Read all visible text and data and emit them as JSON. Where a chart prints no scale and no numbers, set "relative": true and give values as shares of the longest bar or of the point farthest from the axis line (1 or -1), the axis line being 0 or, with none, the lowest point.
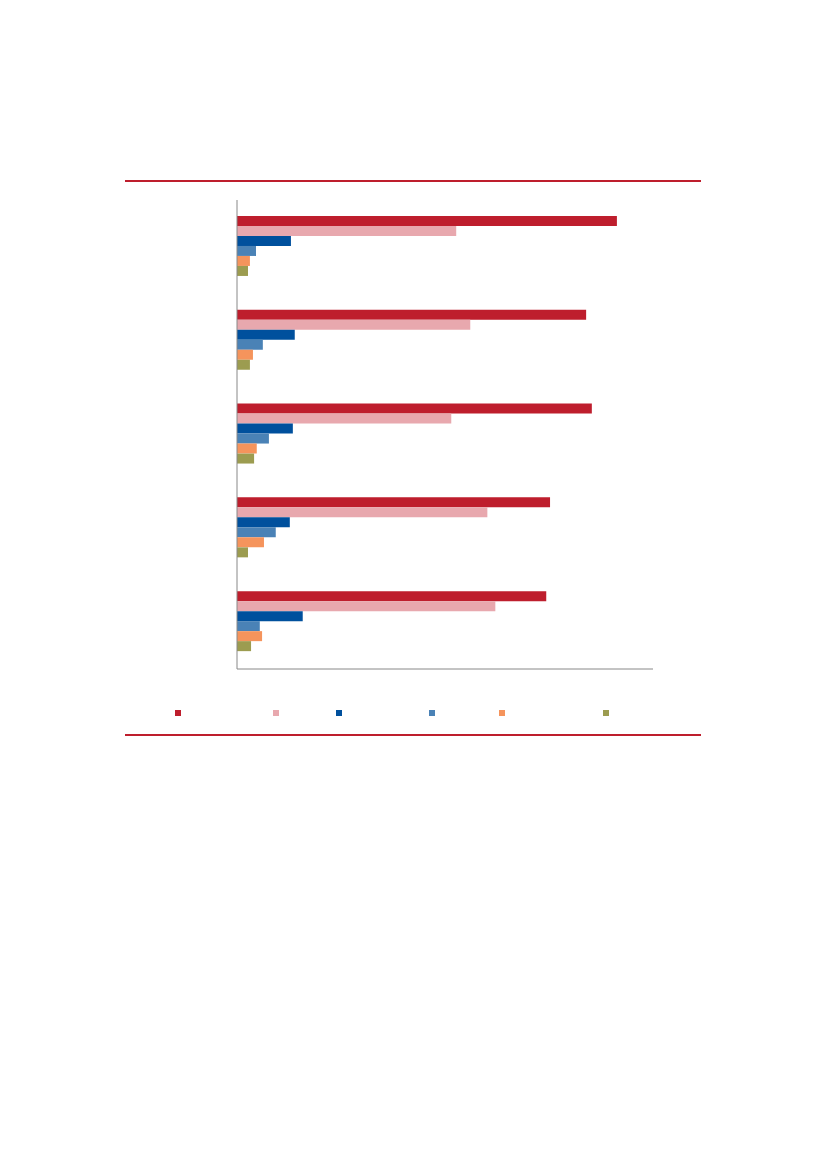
{
  "chart_data": {
    "type": "bar",
    "orientation": "horizontal",
    "relative": true,
    "categories": [
      null,
      null,
      null,
      null,
      null
    ],
    "series": [
      {
        "color": "#be1e2d",
        "values": [
          1,
          0.919,
          0.934,
          0.824,
          0.814
        ]
      },
      {
        "color": "#e8a8ae",
        "values": [
          0.577,
          0.614,
          0.564,
          0.659,
          0.68
        ]
      },
      {
        "color": "#00509d",
        "values": [
          0.142,
          0.152,
          0.147,
          0.139,
          0.173
        ]
      },
      {
        "color": "#4a82b6",
        "values": [
          0.05,
          0.068,
          0.084,
          0.102,
          0.06
        ]
      },
      {
        "color": "#f5945c",
        "values": [
          0.034,
          0.042,
          0.052,
          0.071,
          0.066
        ]
      },
      {
        "color": "#9c9c50",
        "values": [
          0.029,
          0.034,
          0.045,
          0.029,
          0.037
        ]
      }
    ]
  }
}
